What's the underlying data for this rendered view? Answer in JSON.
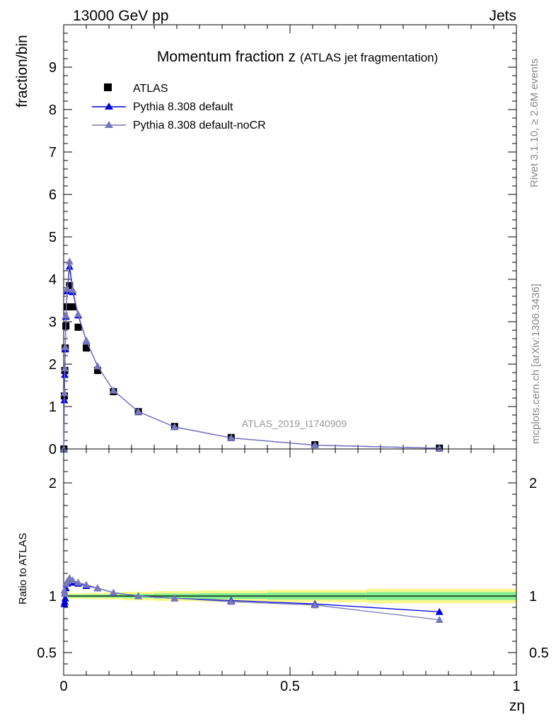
{
  "header": {
    "energy_label": "13000 GeV pp",
    "process_label": "Jets"
  },
  "side_labels": {
    "rivet": "Rivet 3.1.10, ≥ 2.6M events",
    "mcplots": "mcplots.cern.ch [arXiv:1306.3436]"
  },
  "watermark": "ATLAS_2019_I1740909",
  "chart_data": [
    {
      "type": "line",
      "title": "Momentum fraction z",
      "subtitle": "(ATLAS jet fragmentation)",
      "ylabel": "fraction/bin",
      "xlim": [
        0,
        1
      ],
      "ylim": [
        0,
        10
      ],
      "y_ticks": [
        0,
        1,
        2,
        3,
        4,
        5,
        6,
        7,
        8,
        9
      ],
      "legend_position": "top-left",
      "series": [
        {
          "name": "ATLAS",
          "marker": "square",
          "color": "#000000",
          "x": [
            0.0005,
            0.0015,
            0.0025,
            0.0035,
            0.005,
            0.008,
            0.013,
            0.02,
            0.032,
            0.05,
            0.075,
            0.11,
            0.165,
            0.245,
            0.37,
            0.555,
            0.83
          ],
          "y": [
            0.0,
            1.25,
            1.85,
            2.38,
            2.9,
            3.35,
            3.85,
            3.35,
            2.87,
            2.38,
            1.85,
            1.35,
            0.88,
            0.53,
            0.27,
            0.1,
            0.02
          ]
        },
        {
          "name": "Pythia 8.308 default",
          "marker": "triangle",
          "color": "#0000dd",
          "x": [
            0.0005,
            0.0015,
            0.0025,
            0.0035,
            0.005,
            0.008,
            0.013,
            0.02,
            0.032,
            0.05,
            0.075,
            0.11,
            0.165,
            0.245,
            0.37,
            0.555,
            0.83
          ],
          "y": [
            0.0,
            1.15,
            1.75,
            2.35,
            3.12,
            3.72,
            4.3,
            3.7,
            3.15,
            2.55,
            1.95,
            1.38,
            0.88,
            0.52,
            0.26,
            0.09,
            0.017
          ]
        },
        {
          "name": "Pythia 8.308 default-noCR",
          "marker": "triangle",
          "color": "#7777bb",
          "x": [
            0.0005,
            0.0015,
            0.0025,
            0.0035,
            0.005,
            0.008,
            0.013,
            0.02,
            0.032,
            0.05,
            0.075,
            0.11,
            0.165,
            0.245,
            0.37,
            0.555,
            0.83
          ],
          "y": [
            0.0,
            1.32,
            1.9,
            2.4,
            3.15,
            3.78,
            4.42,
            3.75,
            3.18,
            2.56,
            1.95,
            1.38,
            0.88,
            0.52,
            0.26,
            0.09,
            0.016
          ]
        }
      ]
    },
    {
      "type": "line",
      "ylabel": "Ratio to ATLAS",
      "xlabel": "zη",
      "xlim": [
        0,
        1
      ],
      "ylim": [
        0.3,
        2.3
      ],
      "y_ticks": [
        0.5,
        1,
        2
      ],
      "x_ticks": [
        0,
        0.5,
        1
      ],
      "x_tick_labels": [
        "0",
        "0.5",
        "1"
      ],
      "reference_line": 1,
      "uncertainty_bands": {
        "x_edges": [
          0,
          0.002,
          0.004,
          0.01,
          0.02,
          0.04,
          0.06,
          0.09,
          0.13,
          0.2,
          0.3,
          0.45,
          0.67,
          1.0
        ],
        "inner_halfwidth": [
          0.015,
          0.014,
          0.013,
          0.013,
          0.013,
          0.013,
          0.014,
          0.015,
          0.018,
          0.022,
          0.025,
          0.03,
          0.035
        ],
        "outer_halfwidth": [
          0.03,
          0.028,
          0.026,
          0.026,
          0.026,
          0.027,
          0.028,
          0.032,
          0.038,
          0.045,
          0.05,
          0.055,
          0.065
        ],
        "inner_color": "#80ee90",
        "outer_color": "#f8f890"
      },
      "series": [
        {
          "name": "Pythia 8.308 default",
          "color": "#0000dd",
          "x": [
            0.0015,
            0.0025,
            0.0035,
            0.005,
            0.008,
            0.013,
            0.02,
            0.032,
            0.05,
            0.075,
            0.11,
            0.165,
            0.245,
            0.37,
            0.555,
            0.83
          ],
          "y": [
            0.93,
            0.95,
            0.98,
            1.07,
            1.11,
            1.13,
            1.12,
            1.11,
            1.09,
            1.07,
            1.03,
            1.0,
            0.98,
            0.96,
            0.93,
            0.86
          ]
        },
        {
          "name": "Pythia 8.308 default-noCR",
          "color": "#7777bb",
          "x": [
            0.0015,
            0.0025,
            0.0035,
            0.005,
            0.008,
            0.013,
            0.02,
            0.032,
            0.05,
            0.075,
            0.11,
            0.165,
            0.245,
            0.37,
            0.555,
            0.83
          ],
          "y": [
            1.05,
            1.03,
            1.02,
            1.11,
            1.13,
            1.16,
            1.14,
            1.12,
            1.1,
            1.07,
            1.03,
            1.0,
            0.98,
            0.95,
            0.92,
            0.79
          ]
        }
      ]
    }
  ]
}
